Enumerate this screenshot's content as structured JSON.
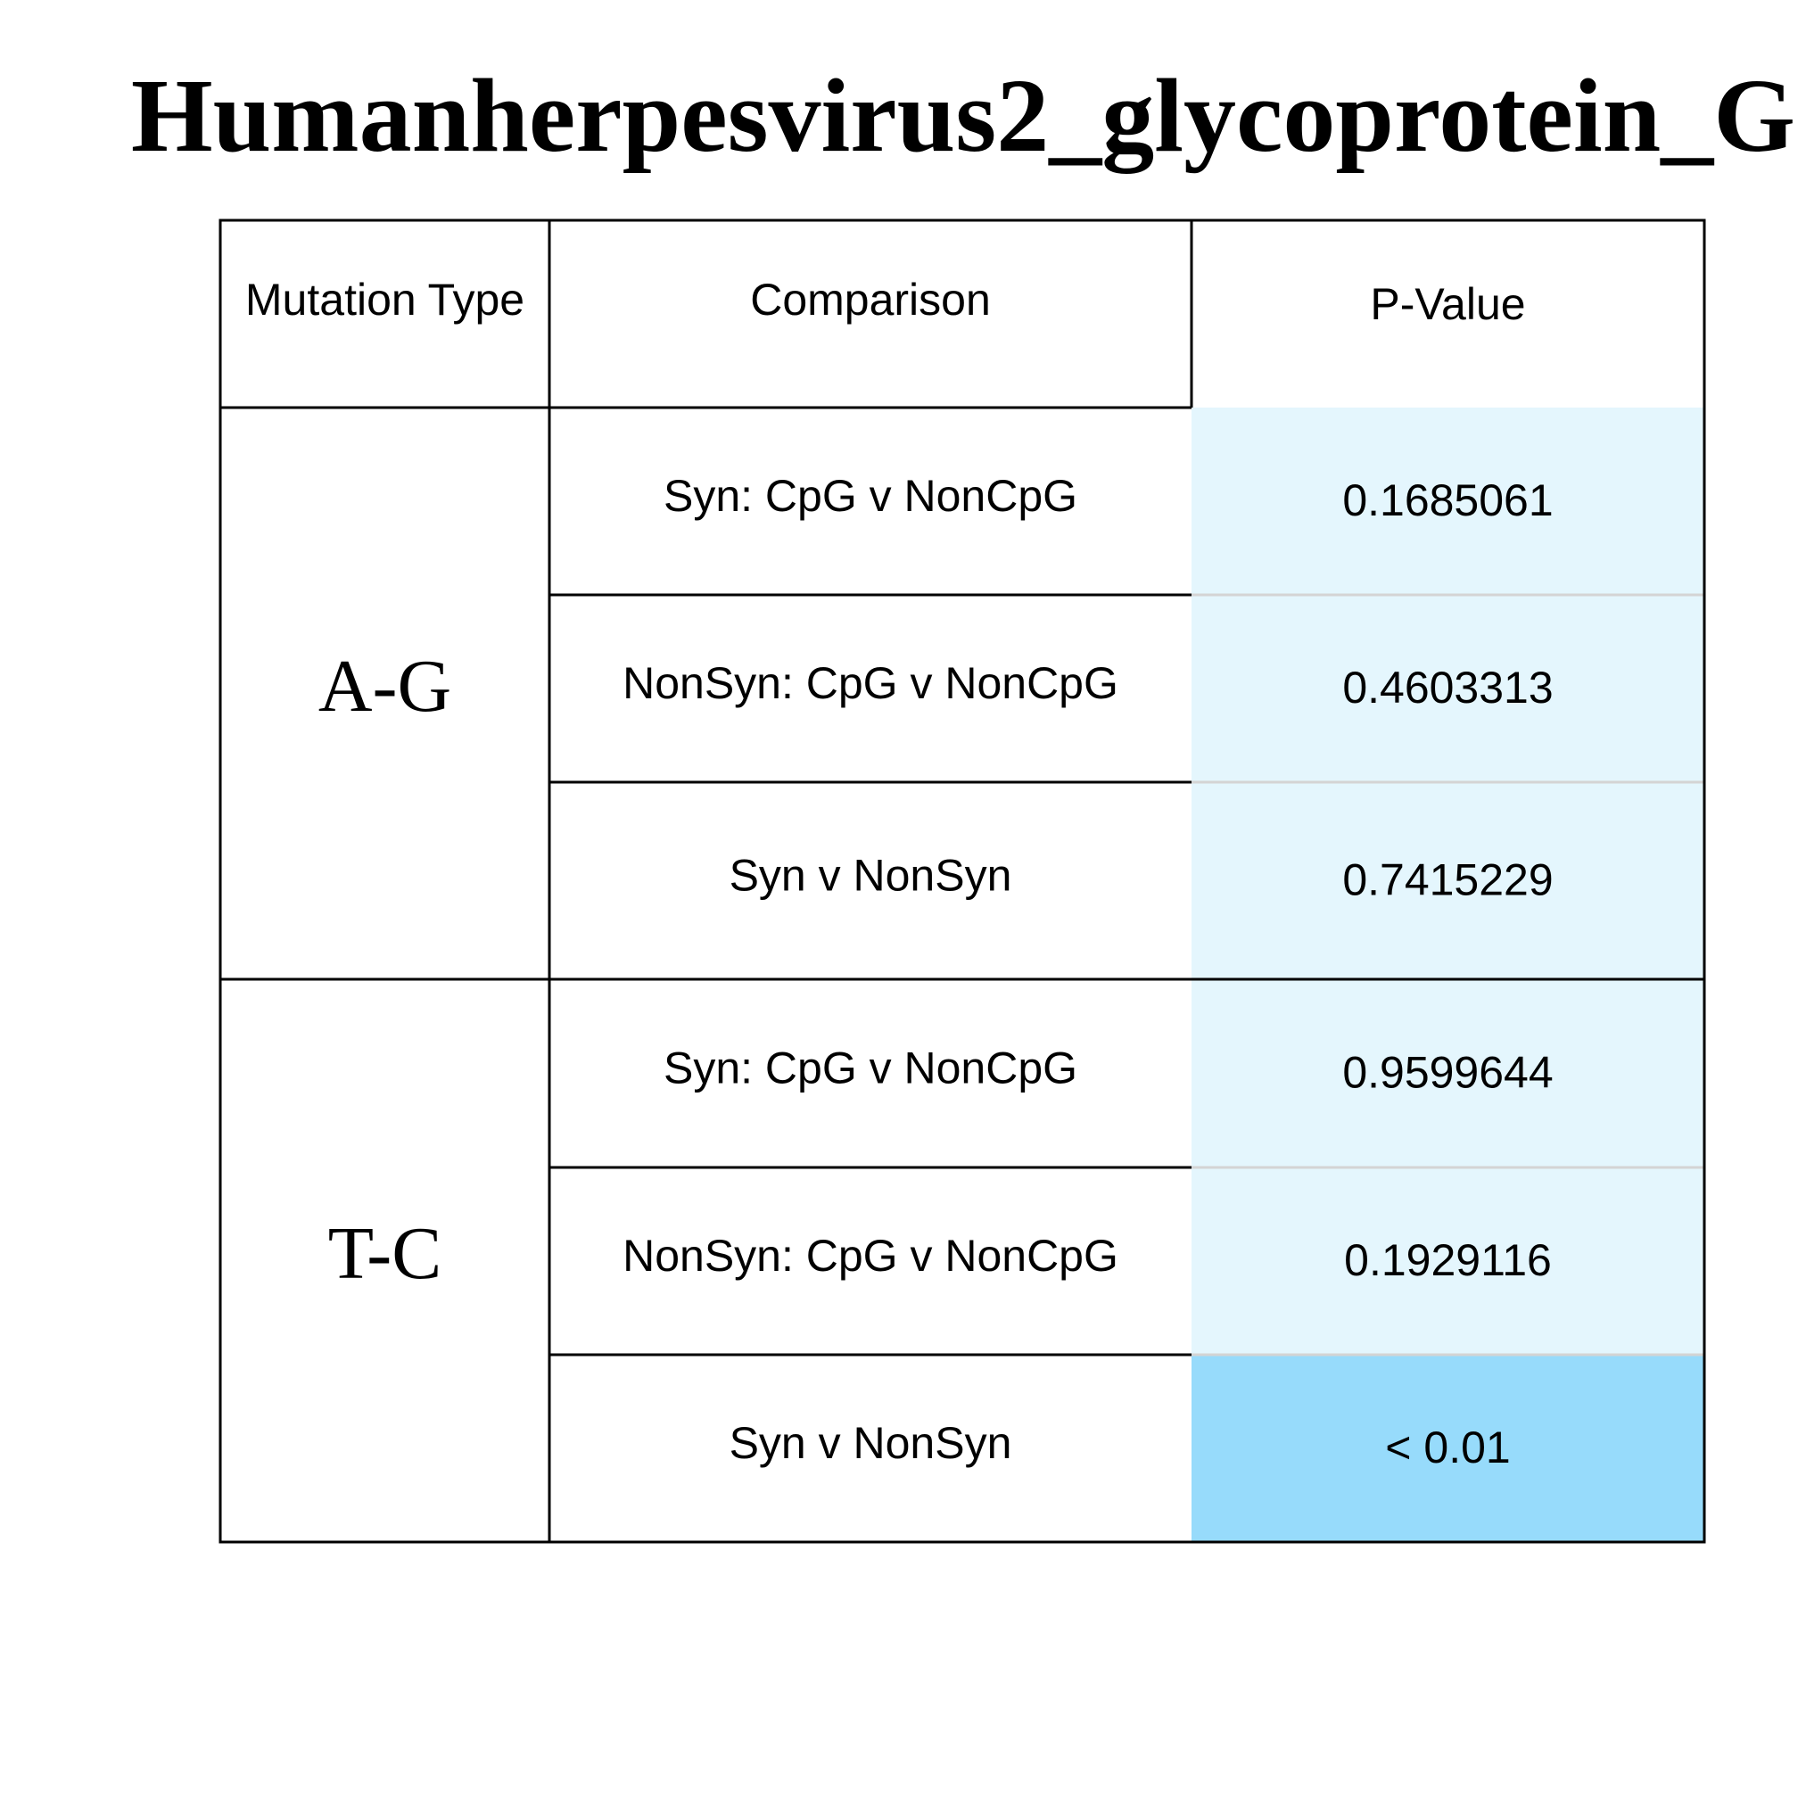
{
  "chart_data": {
    "type": "table",
    "title": "Humanherpesvirus2_glycoprotein_G",
    "columns": [
      "Mutation Type",
      "Comparison",
      "P-Value"
    ],
    "groups": [
      {
        "mutation_type": "A-G",
        "rows": [
          {
            "comparison": "Syn: CpG v NonCpG",
            "p_value": "0.1685061"
          },
          {
            "comparison": "NonSyn: CpG v NonCpG",
            "p_value": "0.4603313"
          },
          {
            "comparison": "Syn v NonSyn",
            "p_value": "0.7415229"
          }
        ]
      },
      {
        "mutation_type": "T-C",
        "rows": [
          {
            "comparison": "Syn: CpG v NonCpG",
            "p_value": "0.9599644"
          },
          {
            "comparison": "NonSyn: CpG v NonCpG",
            "p_value": "0.1929116"
          },
          {
            "comparison": "Syn v NonSyn",
            "p_value": "< 0.01"
          }
        ]
      }
    ],
    "colors": {
      "pvalue_not_significant": "#e4f6fd",
      "pvalue_significant": "#97dbfb",
      "lines": "#000000"
    }
  }
}
